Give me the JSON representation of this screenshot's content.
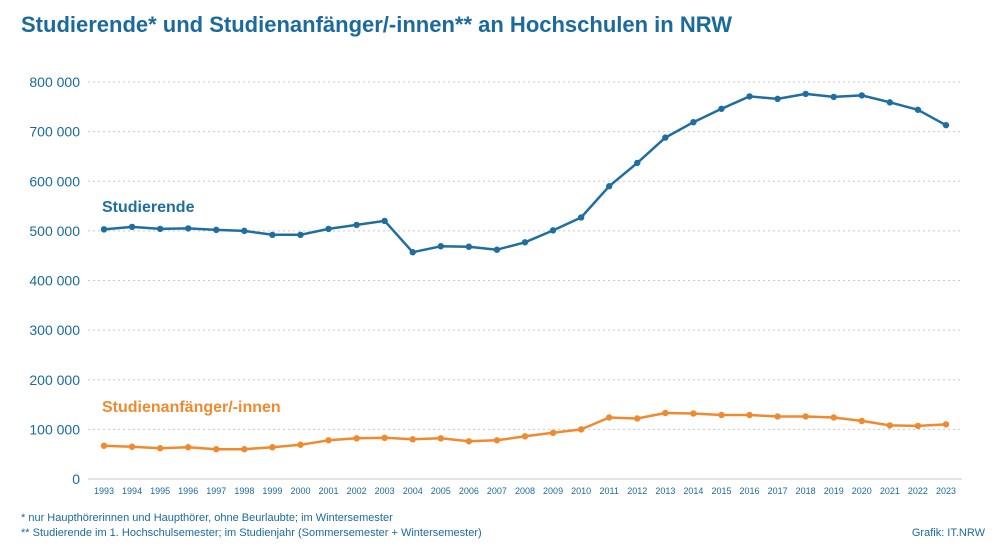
{
  "title": "Studierende* und Studienanfänger/-innen** an Hochschulen in NRW",
  "footnotes": [
    "* nur Haupthörerinnen und Haupthörer, ohne Beurlaubte; im Wintersemester",
    "** Studierende im 1. Hochschulsemester; im Studienjahr (Sommersemester + Wintersemester)"
  ],
  "credit": "Grafik: IT.NRW",
  "colors": {
    "text": "#1a6a9e",
    "studierende": "#1f6ea0",
    "anfaenger": "#f08a2e",
    "grid": "#c8c8c8"
  },
  "chart_data": {
    "type": "line",
    "title": "Studierende* und Studienanfänger/-innen** an Hochschulen in NRW",
    "x": [
      1993,
      1994,
      1995,
      1996,
      1997,
      1998,
      1999,
      2000,
      2001,
      2002,
      2003,
      2004,
      2005,
      2006,
      2007,
      2008,
      2009,
      2010,
      2011,
      2012,
      2013,
      2014,
      2015,
      2016,
      2017,
      2018,
      2019,
      2020,
      2021,
      2022,
      2023
    ],
    "x_tick_labels": [
      "1993",
      "1994",
      "1995",
      "1996",
      "1997",
      "1998",
      "1999",
      "2000",
      "2001",
      "2002",
      "2003",
      "2004",
      "2005",
      "2006",
      "2007",
      "2008",
      "2009",
      "2010",
      "2011",
      "2012",
      "2013",
      "2014",
      "2015",
      "2016",
      "2017",
      "2018",
      "2019",
      "2020",
      "2021",
      "2022",
      "2023"
    ],
    "y_ticks": [
      0,
      100000,
      200000,
      300000,
      400000,
      500000,
      600000,
      700000,
      800000
    ],
    "y_tick_labels": [
      "0",
      "100 000",
      "200 000",
      "300 000",
      "400 000",
      "500 000",
      "600 000",
      "700 000",
      "800 000"
    ],
    "ylim": [
      0,
      800000
    ],
    "grid": true,
    "series": [
      {
        "name": "Studierende",
        "values": [
          503000,
          508000,
          504000,
          505000,
          502000,
          500000,
          492000,
          492000,
          504000,
          512000,
          520000,
          457000,
          469000,
          468000,
          462000,
          477000,
          501000,
          527000,
          590000,
          637000,
          688000,
          719000,
          746000,
          771000,
          766000,
          776000,
          770000,
          773000,
          759000,
          744000,
          713000
        ]
      },
      {
        "name": "Studienanfänger/-innen",
        "values": [
          67000,
          65000,
          62000,
          64000,
          60000,
          60000,
          64000,
          69000,
          78000,
          82000,
          83000,
          80000,
          82000,
          76000,
          78000,
          86000,
          93000,
          100000,
          124000,
          122000,
          133000,
          132000,
          129000,
          129000,
          126000,
          126000,
          124000,
          117000,
          108000,
          107000,
          110000
        ]
      }
    ]
  }
}
